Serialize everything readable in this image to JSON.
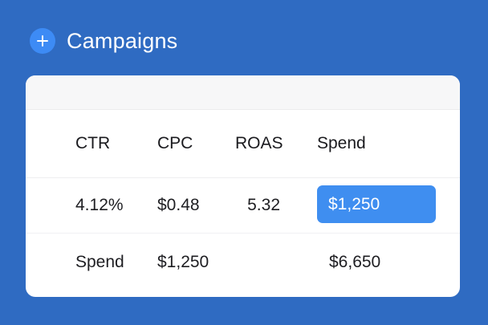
{
  "header": {
    "title": "Campaigns",
    "add_icon": "plus-icon"
  },
  "table": {
    "columns": [
      "CTR",
      "CPC",
      "ROAS",
      "Spend"
    ],
    "rows": [
      {
        "ctr": "4.12%",
        "cpc": "$0.48",
        "roas": "5.32",
        "spend": "$1,250"
      }
    ],
    "summary": {
      "label": "Spend",
      "value1": "$1,250",
      "value2": "$6,650"
    }
  },
  "colors": {
    "background": "#2f6bc2",
    "accent": "#3f8ef0",
    "card": "#ffffff"
  }
}
